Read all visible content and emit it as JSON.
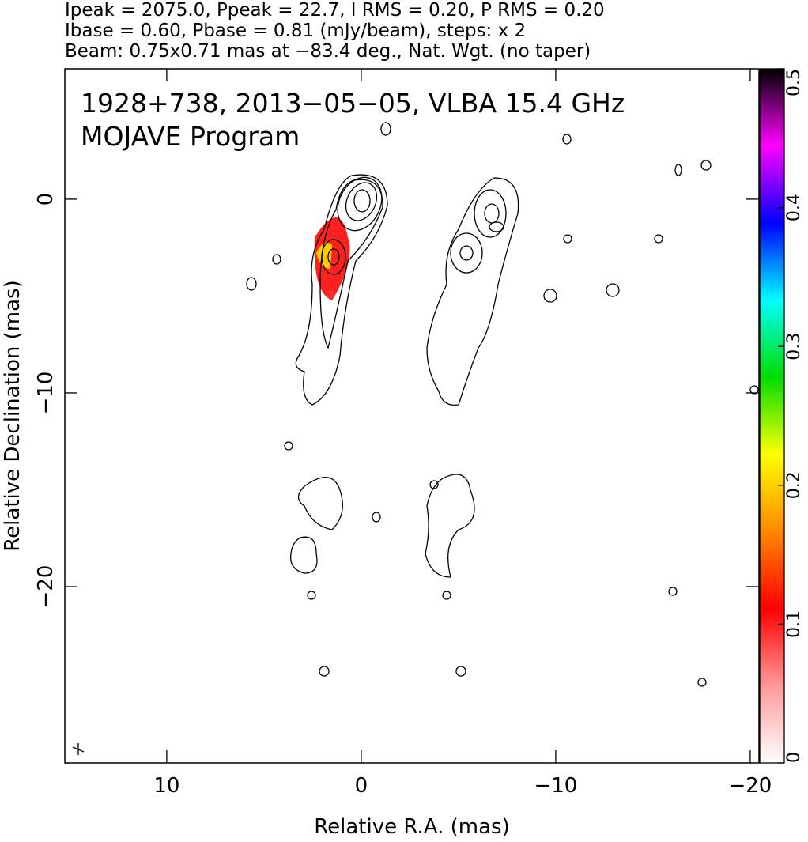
{
  "chart_data": {
    "type": "map",
    "header": [
      "Ipeak = 2075.0, Ppeak = 22.7, I RMS = 0.20, P RMS = 0.20",
      "Ibase = 0.60, Pbase = 0.81 (mJy/beam), steps: x 2",
      "Beam: 0.75x0.71 mas at −83.4 deg., Nat. Wgt. (no taper)"
    ],
    "annotations": [
      "1928+738, 2013−05−05, VLBA 15.4 GHz",
      "MOJAVE Program"
    ],
    "x_label": "Relative R.A. (mas)",
    "y_label": "Relative Declination (mas)",
    "xlim": [
      15.24,
      -20.45
    ],
    "ylim": [
      -29.1,
      6.73
    ],
    "xticks": [
      10,
      0,
      {
        "value": -10,
        "label": "−10"
      },
      {
        "value": -20,
        "label": "−20"
      }
    ],
    "yticks": [
      0,
      {
        "value": -10,
        "label": "−10"
      },
      {
        "value": -20,
        "label": "−20"
      }
    ],
    "colorbar": {
      "lim": [
        0,
        0.5
      ],
      "ticks": [
        0,
        0.1,
        0.2,
        0.3,
        0.4,
        0.5
      ],
      "colormap": [
        "#ffffff",
        "#ff9999",
        "#ff0000",
        "#ff8800",
        "#ffff00",
        "#00dd00",
        "#00ffff",
        "#0000ff",
        "#ff00ff",
        "#000000"
      ]
    }
  }
}
